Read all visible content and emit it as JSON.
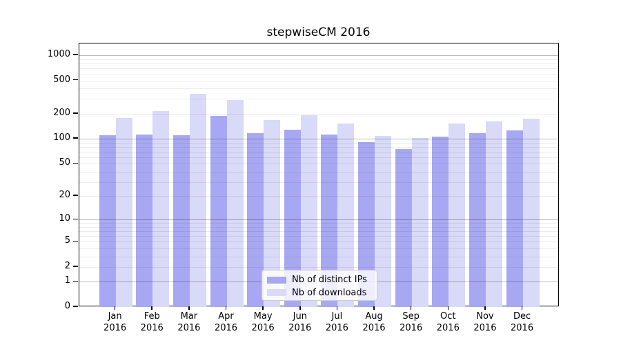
{
  "chart_data": {
    "type": "bar",
    "title": "stepwiseCM 2016",
    "categories": [
      "Jan",
      "Feb",
      "Mar",
      "Apr",
      "May",
      "Jun",
      "Jul",
      "Aug",
      "Sep",
      "Oct",
      "Nov",
      "Dec"
    ],
    "category_year": "2016",
    "series": [
      {
        "name": "Nb of distinct IPs",
        "color": "#a8a8f2",
        "values": [
          110,
          112,
          110,
          188,
          116,
          129,
          113,
          91,
          76,
          107,
          118,
          125
        ]
      },
      {
        "name": "Nb of downloads",
        "color": "#d9d9f8",
        "values": [
          179,
          214,
          345,
          290,
          168,
          192,
          152,
          108,
          102,
          154,
          162,
          175
        ]
      }
    ],
    "y_ticks": [
      1000,
      500,
      200,
      100,
      50,
      20,
      10,
      5,
      2,
      1,
      0
    ],
    "y_scale": "log10(value+1)",
    "ylim": [
      0,
      1380
    ],
    "xlabel": "",
    "ylabel": "",
    "grid": "horizontal",
    "legend_position": "lower-center"
  },
  "colors": {
    "bar_ips": "#a8a8f2",
    "bar_downloads": "#d9d9f8",
    "frame": "#000000",
    "legend_border": "#cccccc"
  }
}
